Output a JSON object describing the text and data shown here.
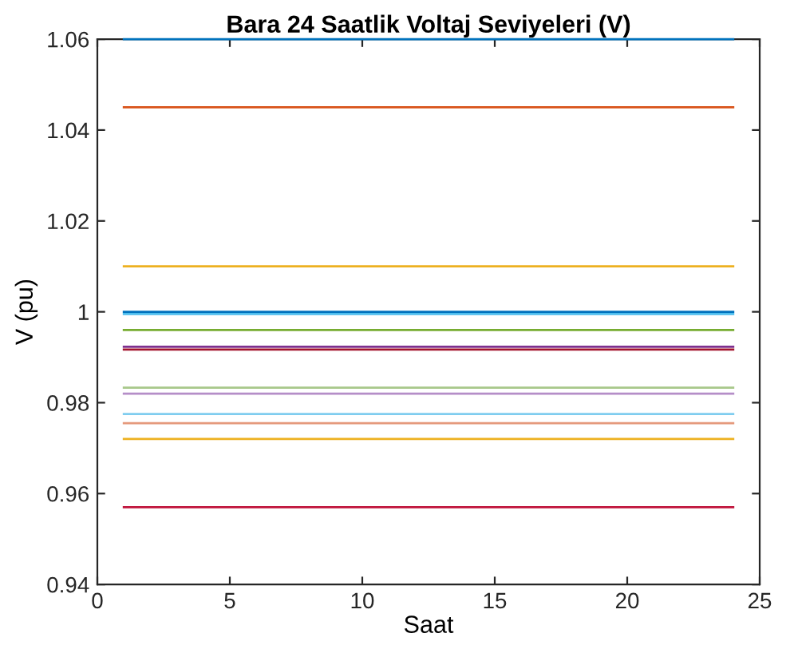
{
  "chart_data": {
    "type": "line",
    "title": "Bara 24 Saatlik Voltaj Seviyeleri (V)",
    "xlabel": "Saat",
    "ylabel": "V (pu)",
    "x": [
      1,
      24
    ],
    "series": [
      {
        "color": "#0072bd",
        "values": [
          1.06,
          1.06
        ]
      },
      {
        "color": "#d95319",
        "values": [
          1.045,
          1.045
        ]
      },
      {
        "color": "#edb120",
        "values": [
          1.01,
          1.01
        ]
      },
      {
        "color": "#4dbeee",
        "values": [
          0.9995,
          0.9995
        ]
      },
      {
        "color": "#0072bd",
        "values": [
          1.0,
          1.0
        ]
      },
      {
        "color": "#77ac30",
        "values": [
          0.996,
          0.996
        ]
      },
      {
        "color": "#7e2f8e",
        "values": [
          0.9923,
          0.9923
        ]
      },
      {
        "color": "#a2142f",
        "values": [
          0.9917,
          0.9917
        ]
      },
      {
        "color": "#a8c88a",
        "values": [
          0.9833,
          0.9833
        ]
      },
      {
        "color": "#b58ec8",
        "values": [
          0.982,
          0.982
        ]
      },
      {
        "color": "#7fcdef",
        "values": [
          0.9775,
          0.9775
        ]
      },
      {
        "color": "#e59a7c",
        "values": [
          0.9755,
          0.9755
        ]
      },
      {
        "color": "#edb120",
        "values": [
          0.972,
          0.972
        ]
      },
      {
        "color": "#c0143c",
        "values": [
          0.957,
          0.957
        ]
      }
    ],
    "xlim": [
      0,
      25
    ],
    "xticks": [
      0,
      5,
      10,
      15,
      20,
      25
    ],
    "ylim": [
      0.94,
      1.06
    ],
    "yticks": [
      0.94,
      0.96,
      0.98,
      {
        "value": 1.0,
        "label": "1"
      },
      1.02,
      1.04,
      1.06
    ],
    "grid": false,
    "legend": false
  }
}
